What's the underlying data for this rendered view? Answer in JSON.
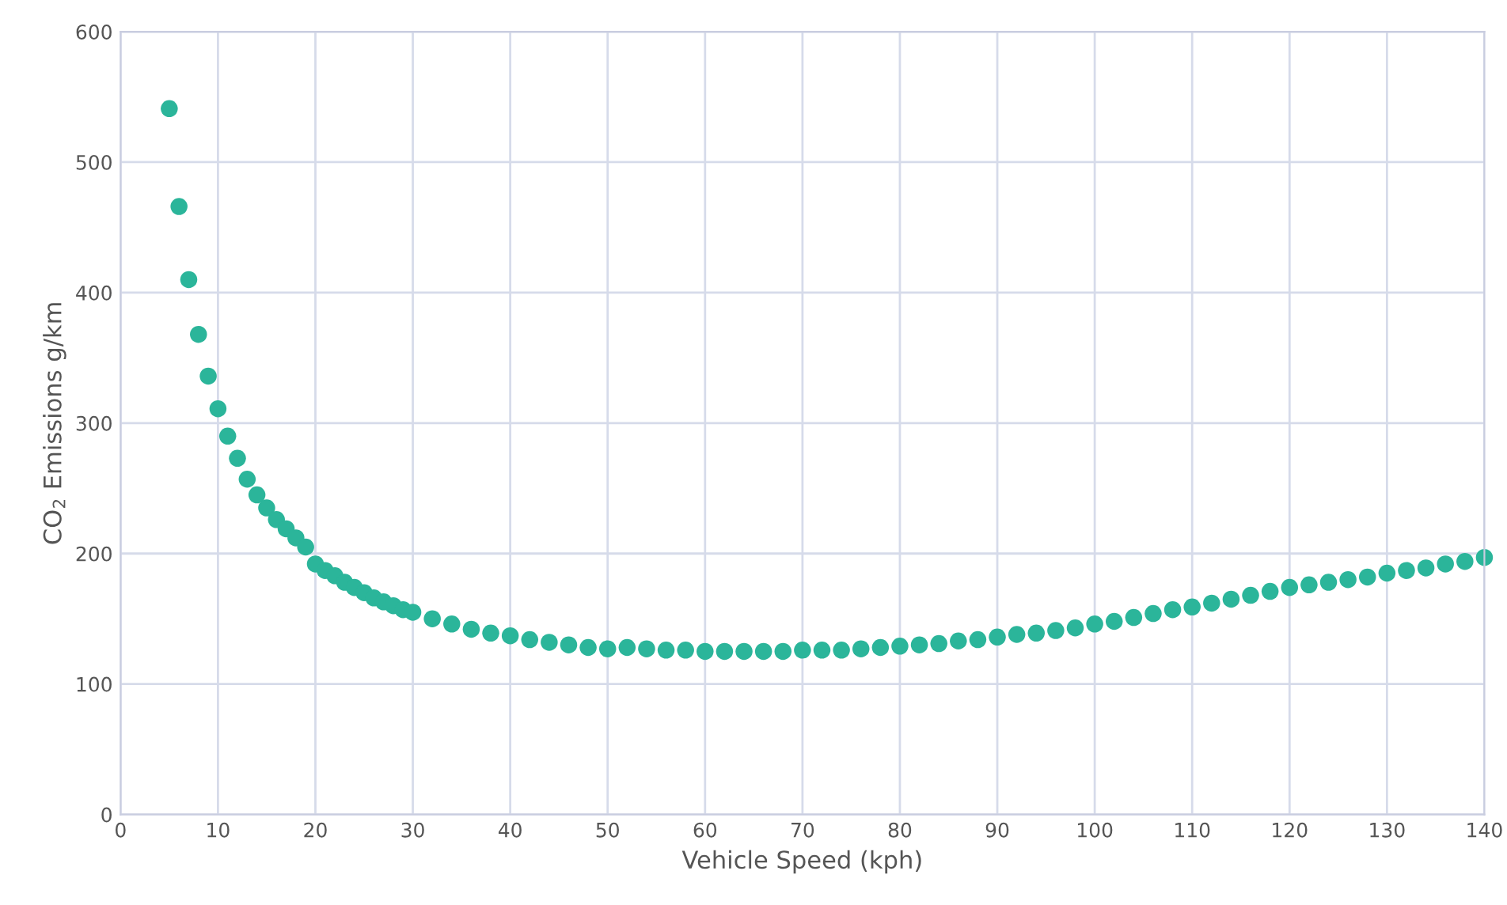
{
  "chart_data": {
    "type": "scatter",
    "xlabel": "Vehicle Speed (kph)",
    "ylabel": "CO$_{2}$ Emissions g/km",
    "x": [
      5,
      6,
      7,
      8,
      9,
      10,
      11,
      12,
      13,
      14,
      15,
      16,
      17,
      18,
      19,
      20,
      21,
      22,
      23,
      24,
      25,
      26,
      27,
      28,
      29,
      30,
      32,
      34,
      36,
      38,
      40,
      42,
      44,
      46,
      48,
      50,
      52,
      54,
      56,
      58,
      60,
      62,
      64,
      66,
      68,
      70,
      72,
      74,
      76,
      78,
      80,
      82,
      84,
      86,
      88,
      90,
      92,
      94,
      96,
      98,
      100,
      102,
      104,
      106,
      108,
      110,
      112,
      114,
      116,
      118,
      120,
      122,
      124,
      126,
      128,
      130,
      132,
      134,
      136,
      138,
      140
    ],
    "series": [
      {
        "color": "#2bb59a",
        "values": [
          541,
          466,
          410,
          368,
          336,
          311,
          290,
          273,
          257,
          245,
          235,
          226,
          219,
          212,
          205,
          192,
          187,
          183,
          178,
          174,
          170,
          166,
          163,
          160,
          157,
          155,
          150,
          146,
          142,
          139,
          137,
          134,
          132,
          130,
          128,
          127,
          128,
          127,
          126,
          126,
          125,
          125,
          125,
          125,
          125,
          126,
          126,
          126,
          127,
          128,
          129,
          130,
          131,
          133,
          134,
          136,
          138,
          139,
          141,
          143,
          146,
          148,
          151,
          154,
          157,
          159,
          162,
          165,
          168,
          171,
          174,
          176,
          178,
          180,
          182,
          185,
          187,
          189,
          192,
          194,
          197
        ]
      }
    ],
    "xlim": [
      0,
      140
    ],
    "xticks": [
      0,
      10,
      20,
      30,
      40,
      50,
      60,
      70,
      80,
      90,
      100,
      110,
      120,
      130,
      140
    ],
    "ylim": [
      0,
      600
    ],
    "yticks": [
      0,
      100,
      200,
      300,
      400,
      500,
      600
    ],
    "grid": true,
    "marker": "circle"
  }
}
